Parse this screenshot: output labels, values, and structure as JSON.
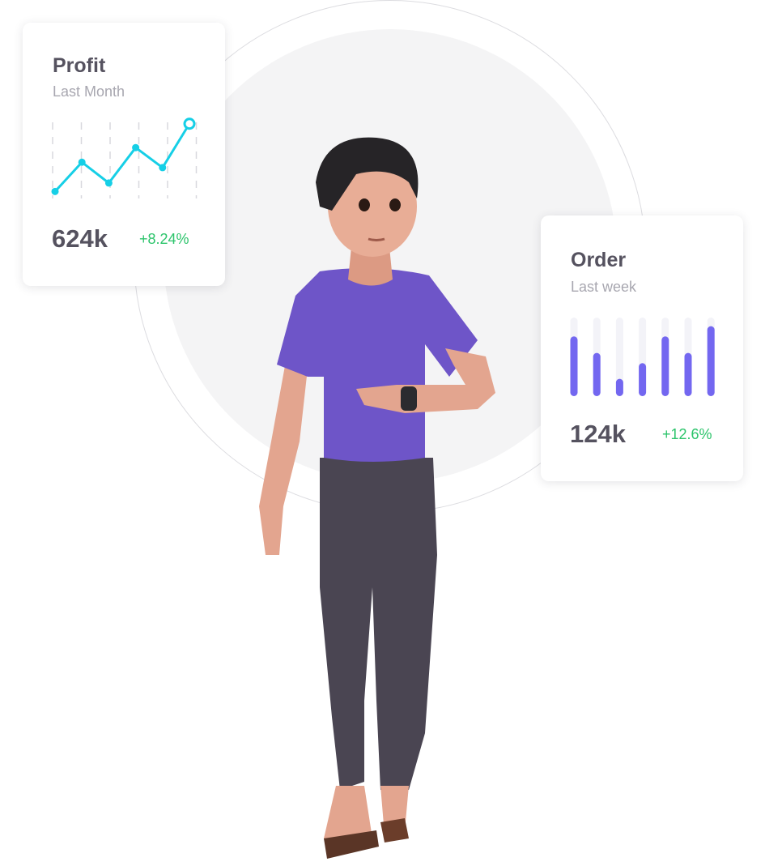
{
  "profit_card": {
    "title": "Profit",
    "subtitle": "Last Month",
    "value": "624k",
    "change": "+8.24%",
    "line_color": "#16cfe6",
    "chart_data": {
      "type": "line",
      "values": [
        7,
        45,
        18,
        64,
        38,
        95
      ],
      "ylim": [
        0,
        100
      ],
      "grid": "vertical-dashed"
    }
  },
  "order_card": {
    "title": "Order",
    "subtitle": "Last week",
    "value": "124k",
    "change": "+12.6%",
    "bar_color": "#7367f0",
    "chart_data": {
      "type": "bar",
      "values": [
        0.76,
        0.55,
        0.22,
        0.42,
        0.76,
        0.55,
        0.89
      ],
      "ylim": [
        0,
        1
      ]
    }
  },
  "colors": {
    "positive": "#2cc46b",
    "text": "#55525f",
    "muted": "#a8a7b0"
  }
}
